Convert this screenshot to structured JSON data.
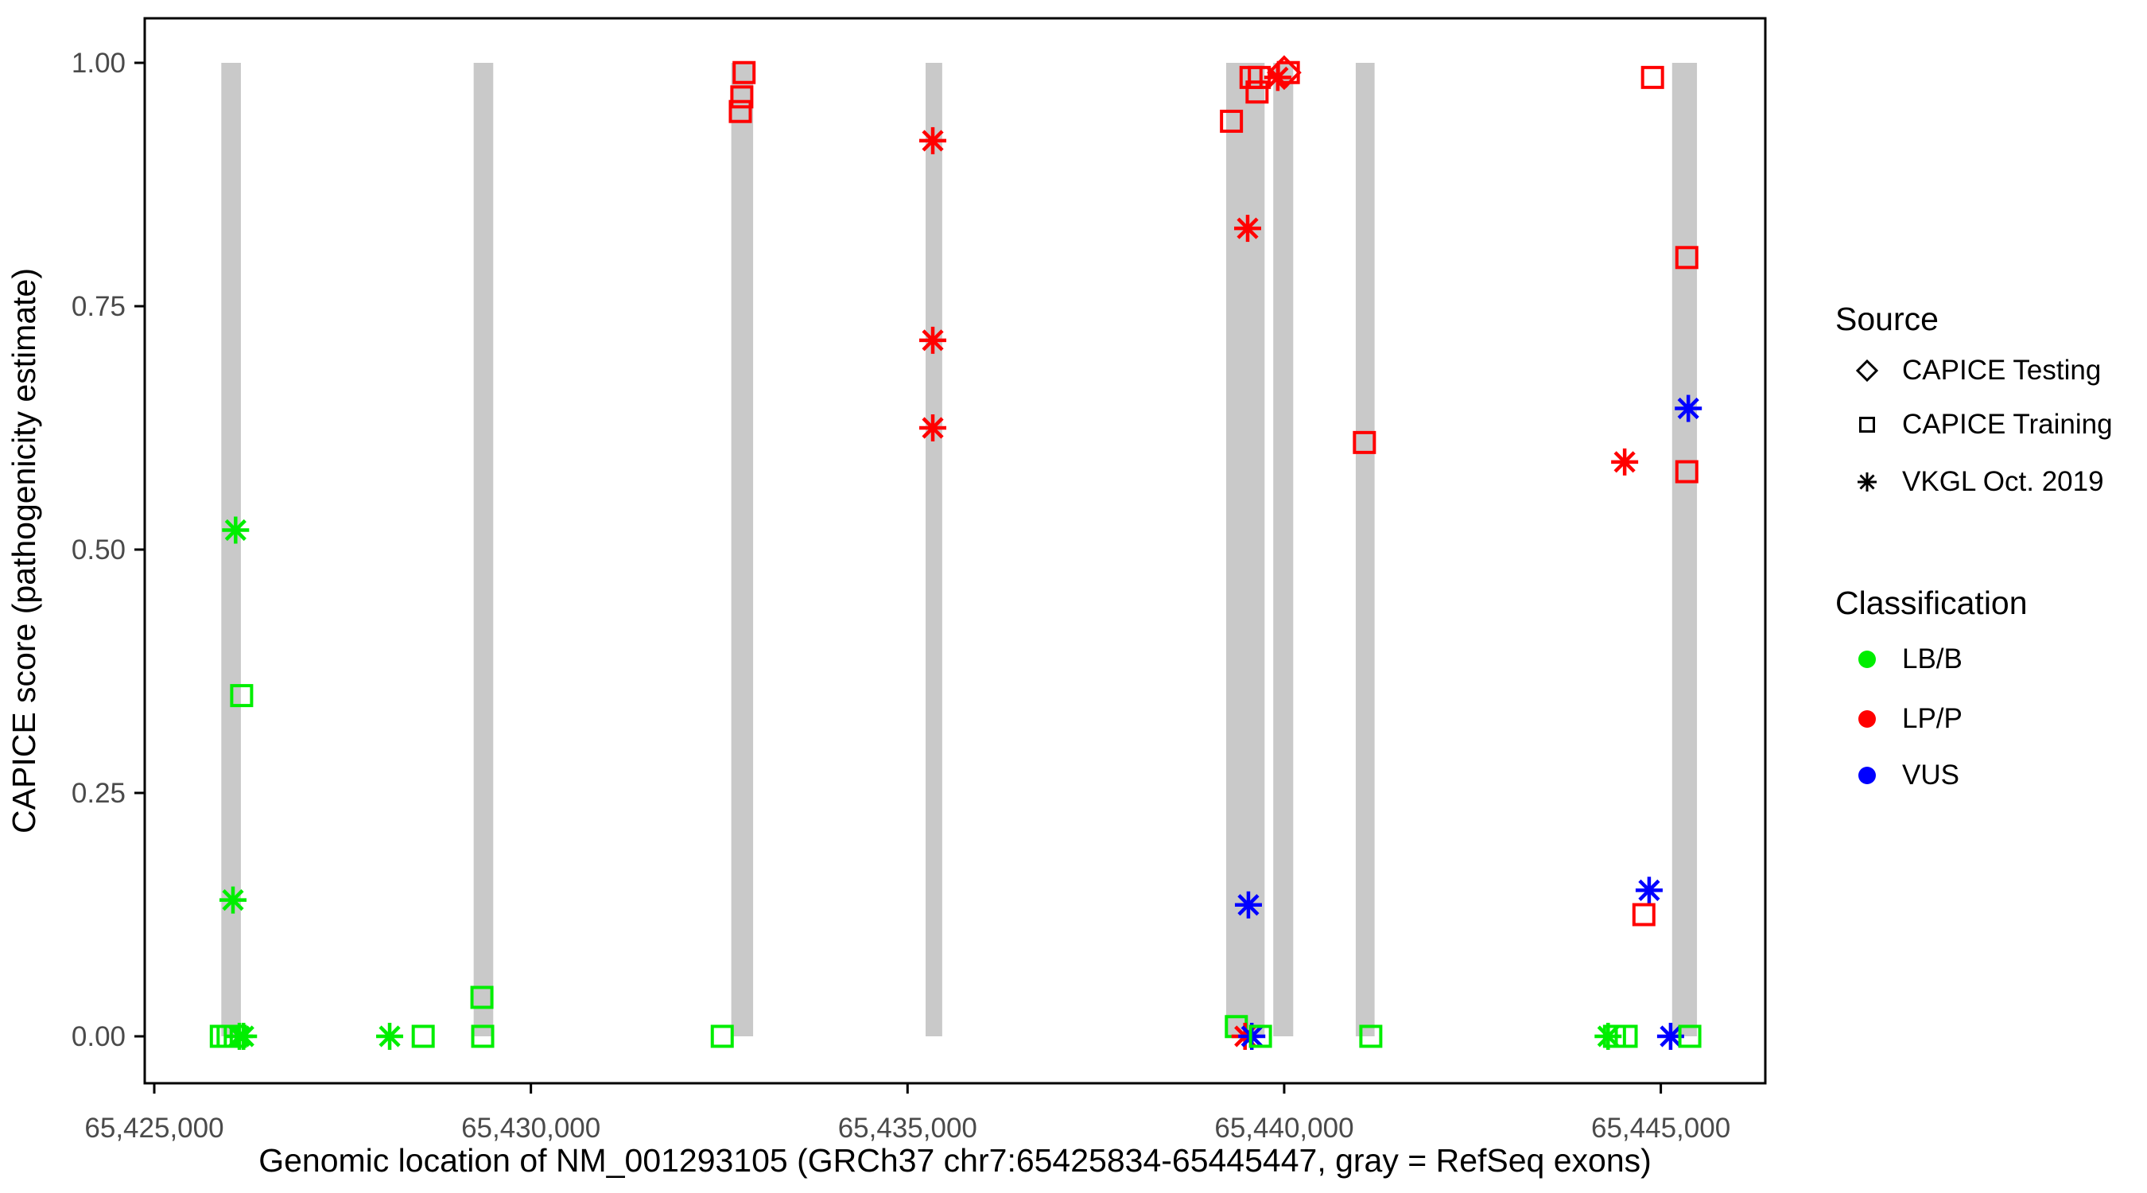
{
  "chart_data": {
    "type": "scatter",
    "title": "",
    "xlabel": "Genomic location of NM_001293105 (GRCh37 chr7:65425834-65445447, gray = RefSeq exons)",
    "ylabel": "CAPICE score (pathogenicity estimate)",
    "x_ticks": [
      65425000,
      65430000,
      65435000,
      65440000,
      65445000
    ],
    "x_tick_labels": [
      "65,425,000",
      "65,430,000",
      "65,435,000",
      "65,440,000",
      "65,445,000"
    ],
    "y_ticks": [
      0,
      0.25,
      0.5,
      0.75,
      1
    ],
    "y_tick_labels": [
      "0.00",
      "0.25",
      "0.50",
      "0.75",
      "1.00"
    ],
    "xlim": [
      65424870,
      65446390
    ],
    "ylim": [
      -0.05,
      1.05
    ],
    "grid": false,
    "legend_position": "right",
    "colors": {
      "exon": "#C9C9C9",
      "axis_text": "#4a4a4a",
      "axis_line": "#000000"
    },
    "exons": [
      [
        65425890,
        65426150
      ],
      [
        65429240,
        65429500
      ],
      [
        65432660,
        65432950
      ],
      [
        65435240,
        65435460
      ],
      [
        65439230,
        65439740
      ],
      [
        65439855,
        65440120
      ],
      [
        65440950,
        65441200
      ],
      [
        65445150,
        65445480
      ]
    ],
    "legend": {
      "source": {
        "title": "Source",
        "marker_color": "#000000",
        "items": [
          {
            "label": "CAPICE Testing",
            "shape": "diamond"
          },
          {
            "label": "CAPICE Training",
            "shape": "square"
          },
          {
            "label": "VKGL Oct. 2019",
            "shape": "asterisk"
          }
        ]
      },
      "classification": {
        "title": "Classification",
        "items": [
          {
            "label": "LB/B",
            "color": "#00EE00"
          },
          {
            "label": "LP/P",
            "color": "#FF0000"
          },
          {
            "label": "VUS",
            "color": "#0000FF"
          }
        ]
      }
    },
    "points": [
      {
        "x": 65425890,
        "y": 0.0,
        "source": "CAPICE Training",
        "classification": "LB/B"
      },
      {
        "x": 65425980,
        "y": 0.0,
        "source": "CAPICE Training",
        "classification": "LB/B"
      },
      {
        "x": 65426075,
        "y": 0.0,
        "source": "CAPICE Training",
        "classification": "LB/B"
      },
      {
        "x": 65426130,
        "y": 0.0,
        "source": "VKGL Oct. 2019",
        "classification": "LB/B"
      },
      {
        "x": 65426185,
        "y": 0.0,
        "source": "VKGL Oct. 2019",
        "classification": "LB/B"
      },
      {
        "x": 65426045,
        "y": 0.14,
        "source": "VKGL Oct. 2019",
        "classification": "LB/B"
      },
      {
        "x": 65426160,
        "y": 0.35,
        "source": "CAPICE Training",
        "classification": "LB/B"
      },
      {
        "x": 65426080,
        "y": 0.52,
        "source": "VKGL Oct. 2019",
        "classification": "LB/B"
      },
      {
        "x": 65428125,
        "y": 0.0,
        "source": "VKGL Oct. 2019",
        "classification": "LB/B"
      },
      {
        "x": 65428570,
        "y": 0.0,
        "source": "CAPICE Training",
        "classification": "LB/B"
      },
      {
        "x": 65429350,
        "y": 0.04,
        "source": "CAPICE Training",
        "classification": "LB/B"
      },
      {
        "x": 65429360,
        "y": 0.0,
        "source": "CAPICE Training",
        "classification": "LB/B"
      },
      {
        "x": 65432540,
        "y": 0.0,
        "source": "CAPICE Training",
        "classification": "LB/B"
      },
      {
        "x": 65432780,
        "y": 0.95,
        "source": "CAPICE Training",
        "classification": "LP/P"
      },
      {
        "x": 65432800,
        "y": 0.965,
        "source": "CAPICE Training",
        "classification": "LP/P"
      },
      {
        "x": 65432830,
        "y": 0.99,
        "source": "CAPICE Training",
        "classification": "LP/P"
      },
      {
        "x": 65435335,
        "y": 0.92,
        "source": "VKGL Oct. 2019",
        "classification": "LP/P"
      },
      {
        "x": 65435335,
        "y": 0.715,
        "source": "VKGL Oct. 2019",
        "classification": "LP/P"
      },
      {
        "x": 65435335,
        "y": 0.625,
        "source": "VKGL Oct. 2019",
        "classification": "LP/P"
      },
      {
        "x": 65439300,
        "y": 0.94,
        "source": "CAPICE Training",
        "classification": "LP/P"
      },
      {
        "x": 65439560,
        "y": 0.985,
        "source": "CAPICE Training",
        "classification": "LP/P"
      },
      {
        "x": 65439640,
        "y": 0.97,
        "source": "CAPICE Training",
        "classification": "LP/P"
      },
      {
        "x": 65439670,
        "y": 0.985,
        "source": "CAPICE Training",
        "classification": "LP/P"
      },
      {
        "x": 65439515,
        "y": 0.83,
        "source": "VKGL Oct. 2019",
        "classification": "LP/P"
      },
      {
        "x": 65439525,
        "y": 0.135,
        "source": "VKGL Oct. 2019",
        "classification": "VUS"
      },
      {
        "x": 65439365,
        "y": 0.01,
        "source": "CAPICE Training",
        "classification": "LB/B"
      },
      {
        "x": 65439480,
        "y": 0.0,
        "source": "VKGL Oct. 2019",
        "classification": "LP/P"
      },
      {
        "x": 65439570,
        "y": 0.0,
        "source": "VKGL Oct. 2019",
        "classification": "VUS"
      },
      {
        "x": 65439685,
        "y": 0.0,
        "source": "CAPICE Training",
        "classification": "LB/B"
      },
      {
        "x": 65439915,
        "y": 0.985,
        "source": "VKGL Oct. 2019",
        "classification": "LP/P"
      },
      {
        "x": 65440000,
        "y": 0.99,
        "source": "CAPICE Testing",
        "classification": "LP/P"
      },
      {
        "x": 65440055,
        "y": 0.99,
        "source": "CAPICE Training",
        "classification": "LP/P"
      },
      {
        "x": 65441065,
        "y": 0.61,
        "source": "CAPICE Training",
        "classification": "LP/P"
      },
      {
        "x": 65441150,
        "y": 0.0,
        "source": "CAPICE Training",
        "classification": "LB/B"
      },
      {
        "x": 65444890,
        "y": 0.985,
        "source": "CAPICE Training",
        "classification": "LP/P"
      },
      {
        "x": 65444520,
        "y": 0.59,
        "source": "VKGL Oct. 2019",
        "classification": "LP/P"
      },
      {
        "x": 65445345,
        "y": 0.8,
        "source": "CAPICE Training",
        "classification": "LP/P"
      },
      {
        "x": 65445365,
        "y": 0.645,
        "source": "VKGL Oct. 2019",
        "classification": "VUS"
      },
      {
        "x": 65445345,
        "y": 0.58,
        "source": "CAPICE Training",
        "classification": "LP/P"
      },
      {
        "x": 65444845,
        "y": 0.15,
        "source": "VKGL Oct. 2019",
        "classification": "VUS"
      },
      {
        "x": 65444775,
        "y": 0.125,
        "source": "CAPICE Training",
        "classification": "LP/P"
      },
      {
        "x": 65444300,
        "y": 0.0,
        "source": "VKGL Oct. 2019",
        "classification": "LB/B"
      },
      {
        "x": 65444385,
        "y": 0.0,
        "source": "CAPICE Training",
        "classification": "LB/B"
      },
      {
        "x": 65444540,
        "y": 0.0,
        "source": "CAPICE Training",
        "classification": "LB/B"
      },
      {
        "x": 65445130,
        "y": 0.0,
        "source": "VKGL Oct. 2019",
        "classification": "VUS"
      },
      {
        "x": 65445385,
        "y": 0.0,
        "source": "CAPICE Training",
        "classification": "LB/B"
      }
    ]
  }
}
